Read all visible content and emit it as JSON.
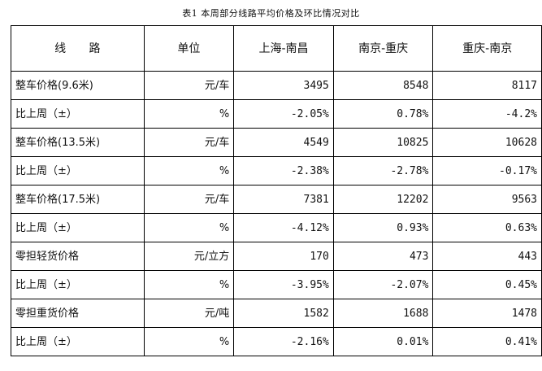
{
  "caption": "表1 本周部分线路平均价格及环比情况对比",
  "header": {
    "route": "线 路",
    "unit": "单位",
    "col1": "上海-南昌",
    "col2": "南京-重庆",
    "col3": "重庆-南京"
  },
  "rows": [
    {
      "label": "整车价格(9.6米)",
      "unit": "元/车",
      "v1": "3495",
      "v2": "8548",
      "v3": "8117"
    },
    {
      "label": "比上周（±）",
      "unit": "%",
      "v1": "-2.05%",
      "v2": "0.78%",
      "v3": "-4.2%"
    },
    {
      "label": "整车价格(13.5米)",
      "unit": "元/车",
      "v1": "4549",
      "v2": "10825",
      "v3": "10628"
    },
    {
      "label": "比上周（±）",
      "unit": "%",
      "v1": "-2.38%",
      "v2": "-2.78%",
      "v3": "-0.17%"
    },
    {
      "label": "整车价格(17.5米)",
      "unit": "元/车",
      "v1": "7381",
      "v2": "12202",
      "v3": "9563"
    },
    {
      "label": "比上周（±）",
      "unit": "%",
      "v1": "-4.12%",
      "v2": "0.93%",
      "v3": "0.63%"
    },
    {
      "label": "零担轻货价格",
      "unit": "元/立方",
      "v1": "170",
      "v2": "473",
      "v3": "443"
    },
    {
      "label": "比上周（±）",
      "unit": "%",
      "v1": "-3.95%",
      "v2": "-2.07%",
      "v3": "0.45%"
    },
    {
      "label": "零担重货价格",
      "unit": "元/吨",
      "v1": "1582",
      "v2": "1688",
      "v3": "1478"
    },
    {
      "label": "比上周（±）",
      "unit": "%",
      "v1": "-2.16%",
      "v2": "0.01%",
      "v3": "0.41%"
    }
  ]
}
